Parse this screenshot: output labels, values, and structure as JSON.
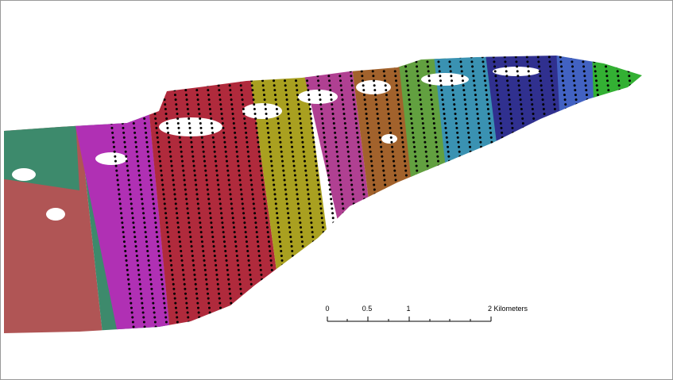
{
  "scale_bar": {
    "labels": [
      "0",
      "0.5",
      "1",
      "2 Kilometers"
    ]
  }
}
